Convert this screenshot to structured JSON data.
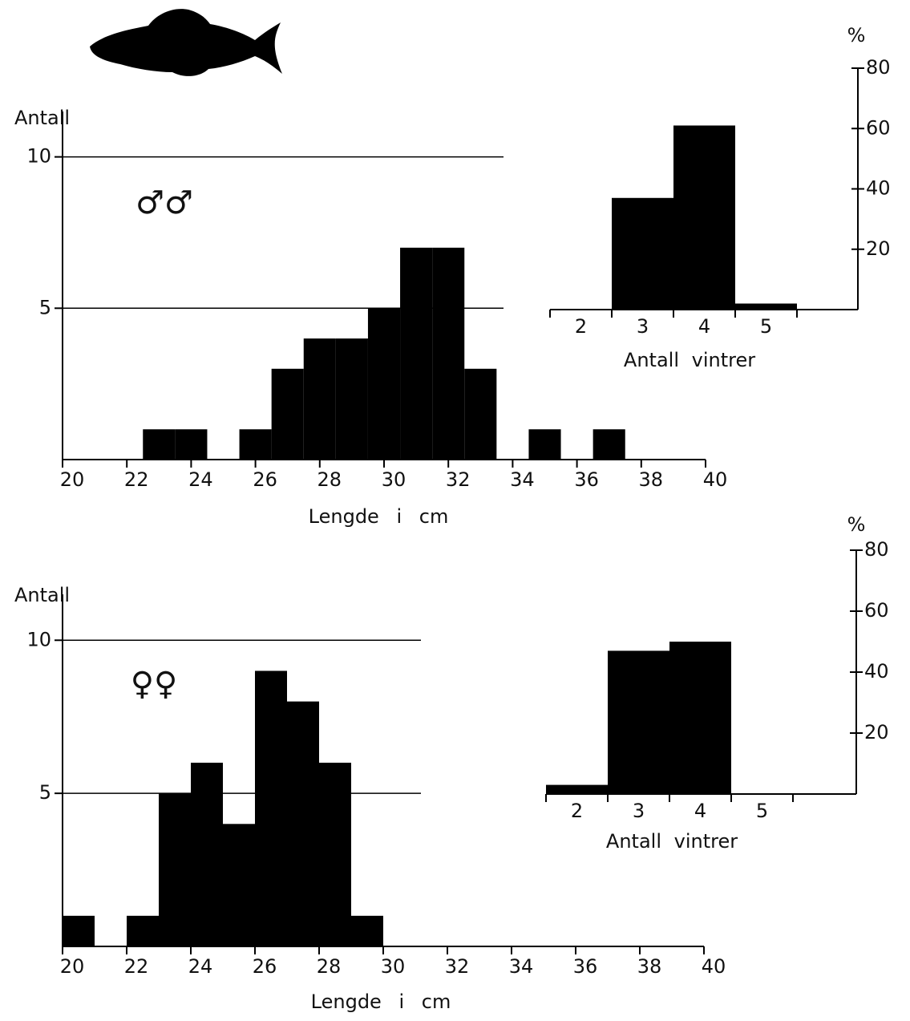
{
  "chart_data": [
    {
      "type": "histogram",
      "y_label": "Antall",
      "x_label": "Lengde i cm",
      "annotation": "♂♂",
      "bins": [
        22.5,
        23.5,
        24.5,
        25.5,
        26.5,
        27.5,
        28.5,
        29.5,
        30.5,
        31.5,
        32.5,
        33.5,
        34.5,
        35.5,
        36.5,
        37.5
      ],
      "values": [
        1,
        1,
        0,
        1,
        3,
        4,
        4,
        5,
        7,
        7,
        3,
        0,
        1,
        0,
        1
      ],
      "color": "#000000",
      "xlim": [
        20,
        40
      ],
      "xticks": [
        20,
        22,
        24,
        26,
        28,
        30,
        32,
        34,
        36,
        38,
        40
      ],
      "ylim": [
        0,
        11.5
      ],
      "yticks": [
        5,
        10
      ],
      "grid": true
    },
    {
      "type": "bar",
      "x_label": "Antall vintrer",
      "y_label": "%",
      "categories": [
        "2",
        "3",
        "4",
        "5"
      ],
      "values": [
        0,
        37,
        61,
        2
      ],
      "color": "#000000",
      "ylim": [
        0,
        80
      ],
      "yticks": [
        20,
        40,
        60,
        80
      ]
    },
    {
      "type": "histogram",
      "y_label": "Antall",
      "x_label": "Lengde i cm",
      "annotation": "♀♀",
      "bins": [
        20,
        21,
        22,
        23,
        24,
        25,
        26,
        27,
        28,
        29,
        30
      ],
      "values": [
        1,
        0,
        1,
        5,
        6,
        4,
        9,
        8,
        6,
        1
      ],
      "color": "#000000",
      "xlim": [
        20,
        40
      ],
      "xticks": [
        20,
        22,
        24,
        26,
        28,
        30,
        32,
        34,
        36,
        38,
        40
      ],
      "ylim": [
        0,
        11.5
      ],
      "yticks": [
        5,
        10
      ],
      "grid": true
    },
    {
      "type": "bar",
      "x_label": "Antall vintrer",
      "y_label": "%",
      "categories": [
        "2",
        "3",
        "4",
        "5"
      ],
      "values": [
        3,
        47,
        50,
        0
      ],
      "color": "#000000",
      "ylim": [
        0,
        80
      ],
      "yticks": [
        20,
        40,
        60,
        80
      ]
    }
  ]
}
